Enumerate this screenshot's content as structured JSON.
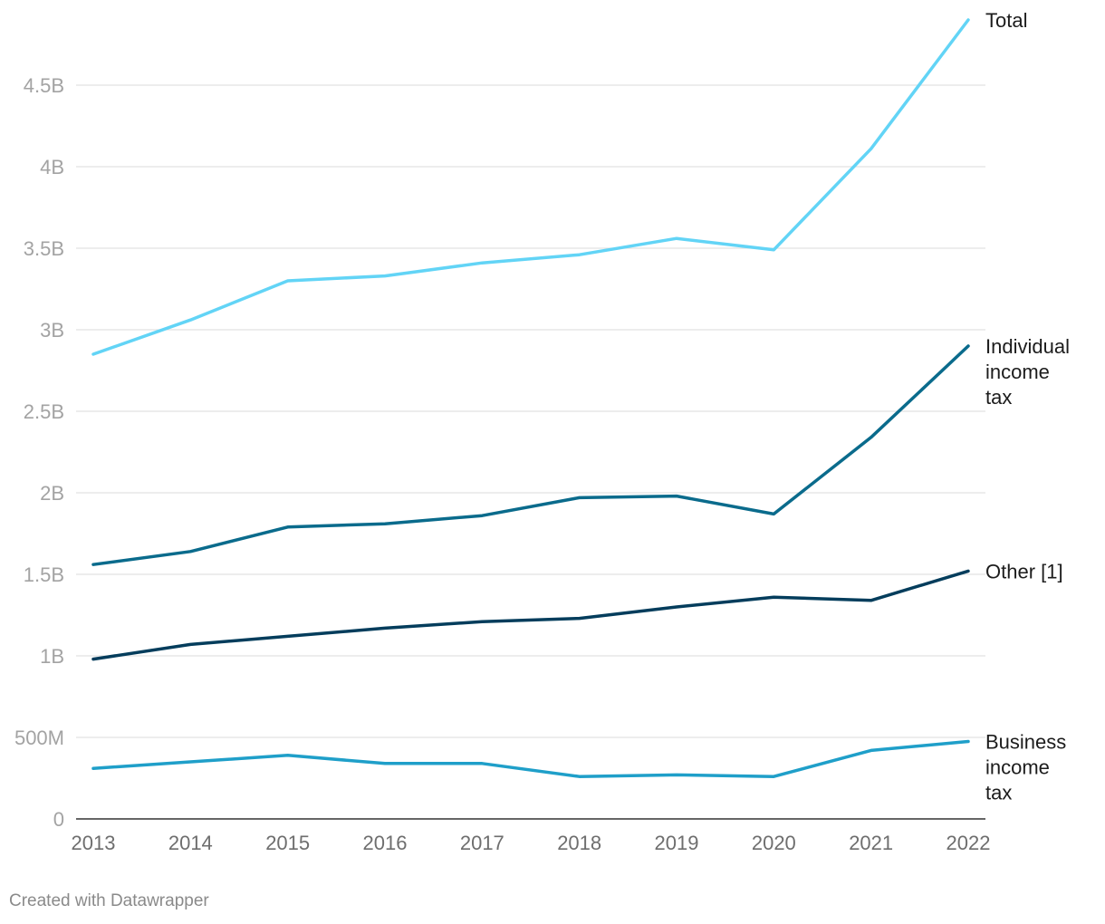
{
  "chart_data": {
    "type": "line",
    "title": "",
    "xlabel": "",
    "ylabel": "",
    "ylim": [
      0,
      4900000000
    ],
    "grid": true,
    "x": [
      "2013",
      "2014",
      "2015",
      "2016",
      "2017",
      "2018",
      "2019",
      "2020",
      "2021",
      "2022"
    ],
    "yticks": [
      {
        "value": 0,
        "label": "0"
      },
      {
        "value": 500000000,
        "label": "500M"
      },
      {
        "value": 1000000000,
        "label": "1B"
      },
      {
        "value": 1500000000,
        "label": "1.5B"
      },
      {
        "value": 2000000000,
        "label": "2B"
      },
      {
        "value": 2500000000,
        "label": "2.5B"
      },
      {
        "value": 3000000000,
        "label": "3B"
      },
      {
        "value": 3500000000,
        "label": "3.5B"
      },
      {
        "value": 4000000000,
        "label": "4B"
      },
      {
        "value": 4500000000,
        "label": "4.5B"
      }
    ],
    "series": [
      {
        "name": "Total",
        "label_lines": [
          "Total"
        ],
        "color": "#62d4f6",
        "values": [
          2850000000,
          3060000000,
          3300000000,
          3330000000,
          3410000000,
          3460000000,
          3560000000,
          3490000000,
          4110000000,
          4900000000
        ]
      },
      {
        "name": "Individual income tax",
        "label_lines": [
          "Individual",
          "income",
          "tax"
        ],
        "color": "#0a6b8c",
        "values": [
          1560000000,
          1640000000,
          1790000000,
          1810000000,
          1860000000,
          1970000000,
          1980000000,
          1870000000,
          2340000000,
          2900000000
        ]
      },
      {
        "name": "Other [1]",
        "label_lines": [
          "Other [1]"
        ],
        "color": "#043d5c",
        "values": [
          980000000,
          1070000000,
          1120000000,
          1170000000,
          1210000000,
          1230000000,
          1300000000,
          1360000000,
          1340000000,
          1520000000
        ]
      },
      {
        "name": "Business income tax",
        "label_lines": [
          "Business",
          "income",
          "tax"
        ],
        "color": "#1f9fc9",
        "values": [
          310000000,
          350000000,
          390000000,
          340000000,
          340000000,
          260000000,
          270000000,
          260000000,
          420000000,
          475000000
        ]
      }
    ]
  },
  "footer": {
    "credit": "Created with Datawrapper"
  }
}
